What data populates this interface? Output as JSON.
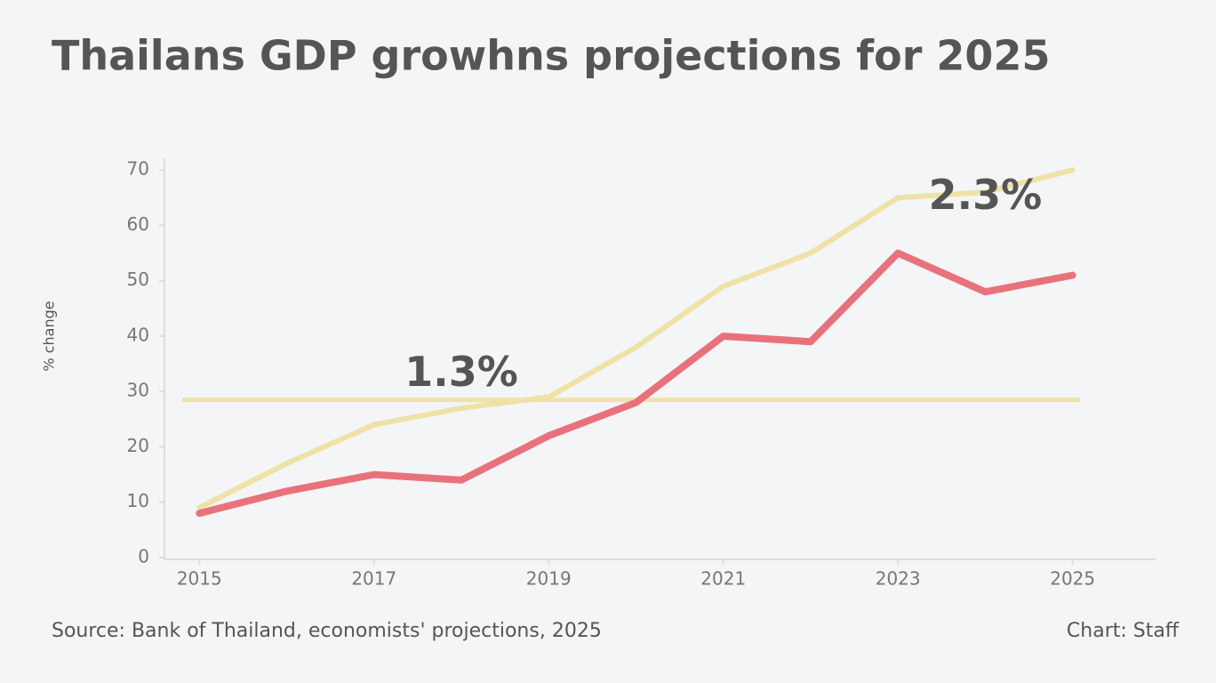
{
  "chart_data": {
    "type": "line",
    "title": "Thailans GDP growhns projections for 2025",
    "y_label": "% change",
    "x": [
      2015,
      2016,
      2017,
      2018,
      2019,
      2020,
      2021,
      2022,
      2023,
      2024,
      2025
    ],
    "series": [
      {
        "color": "#efe2a6",
        "values": [
          9,
          17,
          24,
          27,
          29,
          38,
          49,
          55,
          65,
          66,
          70
        ]
      },
      {
        "color": "#e8727c",
        "values": [
          8,
          12,
          15,
          14,
          22,
          28,
          40,
          39,
          55,
          48,
          51
        ]
      }
    ],
    "reference_line": {
      "value": 28.5,
      "color": "#efe2a6"
    },
    "annotations": [
      {
        "text": "1.3%",
        "x": 2018,
        "y": 33
      },
      {
        "text": "2.3%",
        "x": 2024,
        "y": 65
      }
    ],
    "annotation_color": "#d9c463",
    "xlim": [
      2014.6,
      2025.95
    ],
    "xticks": [
      2015,
      2017,
      2019,
      2021,
      2023,
      2025
    ],
    "ylim": [
      0,
      71
    ],
    "yticks": [
      0,
      10,
      20,
      30,
      40,
      50,
      60,
      70
    ],
    "grid": false,
    "source": "Source: Bank of Thailand, economists' projections, 2025",
    "credit": "Chart: Staff"
  }
}
